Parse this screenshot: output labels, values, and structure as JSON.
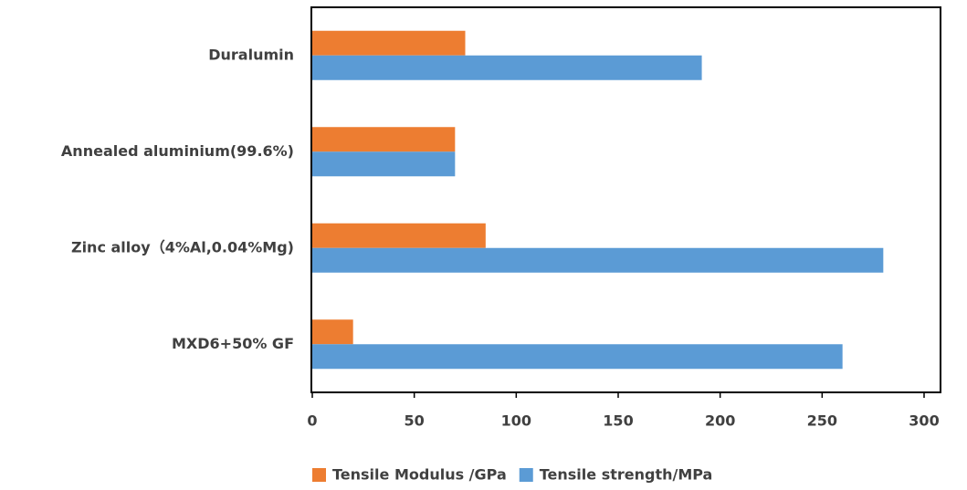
{
  "chart_data": {
    "type": "bar",
    "orientation": "horizontal",
    "categories": [
      "Duralumin",
      "Annealed aluminium(99.6%)",
      "Zinc alloy（4%Al,0.04%Mg)",
      "MXD6+50% GF"
    ],
    "series": [
      {
        "name": "Tensile Modulus /GPa",
        "color": "#ed7d31",
        "values": [
          75,
          70,
          85,
          20
        ]
      },
      {
        "name": "Tensile strength/MPa",
        "color": "#5b9bd5",
        "values": [
          191,
          70,
          280,
          260
        ]
      }
    ],
    "xlim": [
      0,
      300
    ],
    "xticks": [
      0,
      50,
      100,
      150,
      200,
      250,
      300
    ],
    "grid": false,
    "legend": "bottom"
  }
}
